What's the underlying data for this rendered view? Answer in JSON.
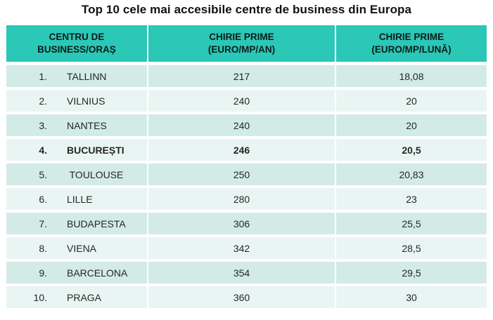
{
  "title": "Top 10 cele mai accesibile centre de business din Europa",
  "colors": {
    "header_bg": "#2bc7b7",
    "row_odd_bg": "#d3ebe7",
    "row_even_bg": "#e9f5f2",
    "text": "#262626"
  },
  "table": {
    "headers": [
      {
        "line1": "CENTRU DE",
        "line2": "BUSINESS/ORAȘ"
      },
      {
        "line1": "CHIRIE PRIME",
        "line2": "(EURO/MP/AN)"
      },
      {
        "line1": "CHIRIE PRIME",
        "line2": "(EURO/MP/LUNĂ)"
      }
    ],
    "rows": [
      {
        "rank": "1.",
        "city": "TALLINN",
        "annual": "217",
        "monthly": "18,08",
        "bold": false
      },
      {
        "rank": "2.",
        "city": "VILNIUS",
        "annual": "240",
        "monthly": "20",
        "bold": false
      },
      {
        "rank": "3.",
        "city": "NANTES",
        "annual": "240",
        "monthly": "20",
        "bold": false
      },
      {
        "rank": "4.",
        "city": "BUCUREȘTI",
        "annual": "246",
        "monthly": "20,5",
        "bold": true
      },
      {
        "rank": "5.",
        "city": " TOULOUSE",
        "annual": "250",
        "monthly": "20,83",
        "bold": false
      },
      {
        "rank": "6.",
        "city": "LILLE",
        "annual": "280",
        "monthly": "23",
        "bold": false
      },
      {
        "rank": "7.",
        "city": "BUDAPESTA",
        "annual": "306",
        "monthly": "25,5",
        "bold": false
      },
      {
        "rank": "8.",
        "city": "VIENA",
        "annual": "342",
        "monthly": "28,5",
        "bold": false
      },
      {
        "rank": "9.",
        "city": "BARCELONA",
        "annual": "354",
        "monthly": "29,5",
        "bold": false
      },
      {
        "rank": "10.",
        "city": "PRAGA",
        "annual": "360",
        "monthly": "30",
        "bold": false
      }
    ]
  },
  "chart_data": {
    "type": "table",
    "title": "Top 10 cele mai accesibile centre de business din Europa",
    "columns": [
      "CENTRU DE BUSINESS/ORAȘ",
      "CHIRIE PRIME (EURO/MP/AN)",
      "CHIRIE PRIME (EURO/MP/LUNĂ)"
    ],
    "rows": [
      {
        "rank": 1,
        "city": "TALLINN",
        "chirie_prime_euro_mp_an": 217,
        "chirie_prime_euro_mp_luna": 18.08
      },
      {
        "rank": 2,
        "city": "VILNIUS",
        "chirie_prime_euro_mp_an": 240,
        "chirie_prime_euro_mp_luna": 20
      },
      {
        "rank": 3,
        "city": "NANTES",
        "chirie_prime_euro_mp_an": 240,
        "chirie_prime_euro_mp_luna": 20
      },
      {
        "rank": 4,
        "city": "BUCUREȘTI",
        "chirie_prime_euro_mp_an": 246,
        "chirie_prime_euro_mp_luna": 20.5,
        "highlighted": true
      },
      {
        "rank": 5,
        "city": "TOULOUSE",
        "chirie_prime_euro_mp_an": 250,
        "chirie_prime_euro_mp_luna": 20.83
      },
      {
        "rank": 6,
        "city": "LILLE",
        "chirie_prime_euro_mp_an": 280,
        "chirie_prime_euro_mp_luna": 23
      },
      {
        "rank": 7,
        "city": "BUDAPESTA",
        "chirie_prime_euro_mp_an": 306,
        "chirie_prime_euro_mp_luna": 25.5
      },
      {
        "rank": 8,
        "city": "VIENA",
        "chirie_prime_euro_mp_an": 342,
        "chirie_prime_euro_mp_luna": 28.5
      },
      {
        "rank": 9,
        "city": "BARCELONA",
        "chirie_prime_euro_mp_an": 354,
        "chirie_prime_euro_mp_luna": 29.5
      },
      {
        "rank": 10,
        "city": "PRAGA",
        "chirie_prime_euro_mp_an": 360,
        "chirie_prime_euro_mp_luna": 30
      }
    ]
  }
}
